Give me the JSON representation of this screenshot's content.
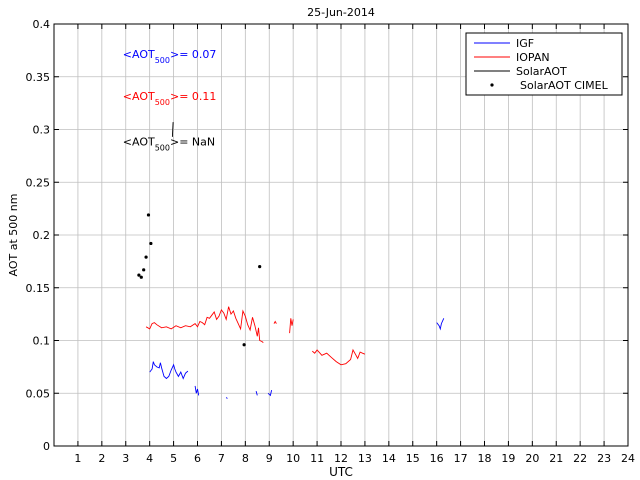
{
  "chart_data": {
    "type": "line",
    "title": "25-Jun-2014",
    "xlabel": "UTC",
    "ylabel": "AOT at 500 nm",
    "xlim": [
      0,
      24
    ],
    "ylim": [
      0,
      0.4
    ],
    "xticks": [
      1,
      2,
      3,
      4,
      5,
      6,
      7,
      8,
      9,
      10,
      11,
      12,
      13,
      14,
      15,
      16,
      17,
      18,
      19,
      20,
      21,
      22,
      23,
      24
    ],
    "yticks": [
      0,
      0.05,
      0.1,
      0.15,
      0.2,
      0.25,
      0.3,
      0.35,
      0.4
    ],
    "xtick_labels": [
      "1",
      "2",
      "3",
      "4",
      "5",
      "6",
      "7",
      "8",
      "9",
      "10",
      "11",
      "12",
      "13",
      "14",
      "15",
      "16",
      "17",
      "18",
      "19",
      "20",
      "21",
      "22",
      "23",
      "24"
    ],
    "ytick_labels": [
      "0",
      "0.05",
      "0.1",
      "0.15",
      "0.2",
      "0.25",
      "0.3",
      "0.35",
      "0.4"
    ],
    "grid": true,
    "legend_position": "top-right",
    "annotations": [
      {
        "prefix": "<AOT",
        "sub": "500",
        "suffix": ">= 0.07",
        "color": "#0000ff",
        "x": 2.5,
        "y": 0.368
      },
      {
        "prefix": "<AOT",
        "sub": "500",
        "suffix": ">= 0.11",
        "color": "#ff0000",
        "x": 2.5,
        "y": 0.328
      },
      {
        "prefix": "<AOT",
        "sub": "500",
        "suffix": ">=  NaN",
        "color": "#000000",
        "x": 2.5,
        "y": 0.285
      }
    ],
    "series": [
      {
        "name": "IGF",
        "color": "#0000ff",
        "style": "line",
        "segments": [
          [
            [
              4.0,
              0.07
            ],
            [
              4.1,
              0.073
            ],
            [
              4.15,
              0.08
            ],
            [
              4.2,
              0.077
            ],
            [
              4.3,
              0.075
            ],
            [
              4.4,
              0.074
            ],
            [
              4.45,
              0.079
            ],
            [
              4.5,
              0.074
            ],
            [
              4.6,
              0.066
            ],
            [
              4.7,
              0.064
            ],
            [
              4.8,
              0.066
            ],
            [
              4.9,
              0.072
            ],
            [
              5.0,
              0.077
            ],
            [
              5.05,
              0.073
            ],
            [
              5.1,
              0.07
            ],
            [
              5.2,
              0.066
            ],
            [
              5.3,
              0.07
            ],
            [
              5.4,
              0.064
            ],
            [
              5.5,
              0.069
            ],
            [
              5.6,
              0.071
            ]
          ],
          [
            [
              5.9,
              0.057
            ],
            [
              5.95,
              0.05
            ],
            [
              6.0,
              0.054
            ],
            [
              6.05,
              0.048
            ]
          ],
          [
            [
              7.2,
              0.046
            ],
            [
              7.25,
              0.045
            ]
          ],
          [
            [
              8.45,
              0.052
            ],
            [
              8.5,
              0.048
            ]
          ],
          [
            [
              8.95,
              0.05
            ],
            [
              9.05,
              0.048
            ],
            [
              9.1,
              0.053
            ]
          ],
          [
            [
              16.0,
              0.117
            ],
            [
              16.1,
              0.114
            ],
            [
              16.15,
              0.111
            ],
            [
              16.2,
              0.116
            ],
            [
              16.3,
              0.121
            ]
          ]
        ]
      },
      {
        "name": "IOPAN",
        "color": "#ff0000",
        "style": "line",
        "segments": [
          [
            [
              3.85,
              0.113
            ],
            [
              4.0,
              0.111
            ],
            [
              4.1,
              0.116
            ],
            [
              4.2,
              0.117
            ],
            [
              4.3,
              0.115
            ],
            [
              4.5,
              0.112
            ],
            [
              4.7,
              0.113
            ],
            [
              4.9,
              0.111
            ],
            [
              5.1,
              0.114
            ],
            [
              5.3,
              0.112
            ],
            [
              5.5,
              0.114
            ],
            [
              5.7,
              0.113
            ],
            [
              5.9,
              0.116
            ],
            [
              6.0,
              0.113
            ],
            [
              6.1,
              0.118
            ],
            [
              6.2,
              0.117
            ],
            [
              6.3,
              0.115
            ],
            [
              6.4,
              0.122
            ],
            [
              6.5,
              0.121
            ],
            [
              6.6,
              0.124
            ],
            [
              6.7,
              0.127
            ],
            [
              6.8,
              0.12
            ],
            [
              6.9,
              0.123
            ],
            [
              7.0,
              0.129
            ],
            [
              7.1,
              0.126
            ],
            [
              7.2,
              0.12
            ],
            [
              7.3,
              0.132
            ],
            [
              7.4,
              0.125
            ],
            [
              7.5,
              0.128
            ],
            [
              7.6,
              0.121
            ],
            [
              7.7,
              0.116
            ],
            [
              7.8,
              0.111
            ],
            [
              7.9,
              0.128
            ],
            [
              8.0,
              0.123
            ],
            [
              8.1,
              0.115
            ],
            [
              8.2,
              0.11
            ],
            [
              8.3,
              0.122
            ],
            [
              8.4,
              0.114
            ],
            [
              8.5,
              0.104
            ],
            [
              8.55,
              0.112
            ],
            [
              8.6,
              0.1
            ],
            [
              8.7,
              0.099
            ],
            [
              8.75,
              0.098
            ]
          ],
          [
            [
              9.2,
              0.116
            ],
            [
              9.25,
              0.118
            ],
            [
              9.3,
              0.116
            ]
          ],
          [
            [
              9.85,
              0.107
            ],
            [
              9.9,
              0.121
            ],
            [
              9.95,
              0.114
            ],
            [
              10.0,
              0.12
            ]
          ],
          [
            [
              10.8,
              0.09
            ],
            [
              10.9,
              0.088
            ],
            [
              11.0,
              0.091
            ],
            [
              11.2,
              0.086
            ],
            [
              11.4,
              0.088
            ],
            [
              11.6,
              0.084
            ],
            [
              11.8,
              0.08
            ],
            [
              12.0,
              0.077
            ],
            [
              12.2,
              0.078
            ],
            [
              12.4,
              0.082
            ],
            [
              12.5,
              0.091
            ],
            [
              12.6,
              0.087
            ],
            [
              12.7,
              0.083
            ],
            [
              12.8,
              0.089
            ],
            [
              12.9,
              0.088
            ],
            [
              13.0,
              0.087
            ]
          ]
        ]
      },
      {
        "name": "SolarAOT",
        "color": "#000000",
        "style": "line",
        "segments": [
          [
            [
              4.95,
              0.293
            ],
            [
              4.98,
              0.307
            ]
          ]
        ]
      },
      {
        "name": "SolarAOT CIMEL",
        "color": "#000000",
        "style": "marker",
        "points": [
          [
            3.55,
            0.162
          ],
          [
            3.65,
            0.16
          ],
          [
            3.75,
            0.167
          ],
          [
            3.85,
            0.179
          ],
          [
            3.95,
            0.219
          ],
          [
            4.05,
            0.192
          ],
          [
            7.95,
            0.096
          ],
          [
            8.6,
            0.17
          ]
        ]
      }
    ]
  }
}
